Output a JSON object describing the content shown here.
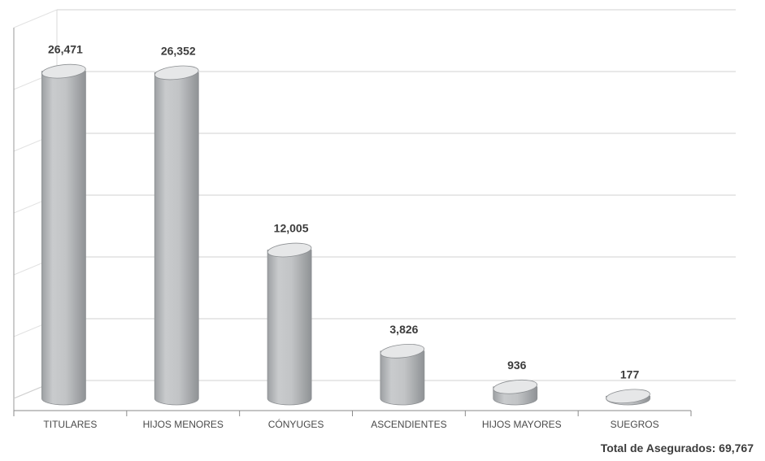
{
  "chart_data": {
    "type": "bar",
    "style": "3d-cylinder",
    "categories": [
      "TITULARES",
      "HIJOS MENORES",
      "CÓNYUGES",
      "ASCENDIENTES",
      "HIJOS MAYORES",
      "SUEGROS"
    ],
    "values": [
      26471,
      26352,
      12005,
      3826,
      936,
      177
    ],
    "value_labels": [
      "26,471",
      "26,352",
      "12,005",
      "3,826",
      "936",
      "177"
    ],
    "ylim": [
      0,
      28000
    ],
    "grid": true,
    "legend": "none",
    "colors": {
      "bar": "#c7c9cb",
      "bar_dark": "#9b9da0",
      "bar_top": "#e6e7e8",
      "grid": "#d2d2d2",
      "text": "#3c3c3c"
    }
  },
  "footer": {
    "total_label": "Total de Asegurados: 69,767"
  }
}
